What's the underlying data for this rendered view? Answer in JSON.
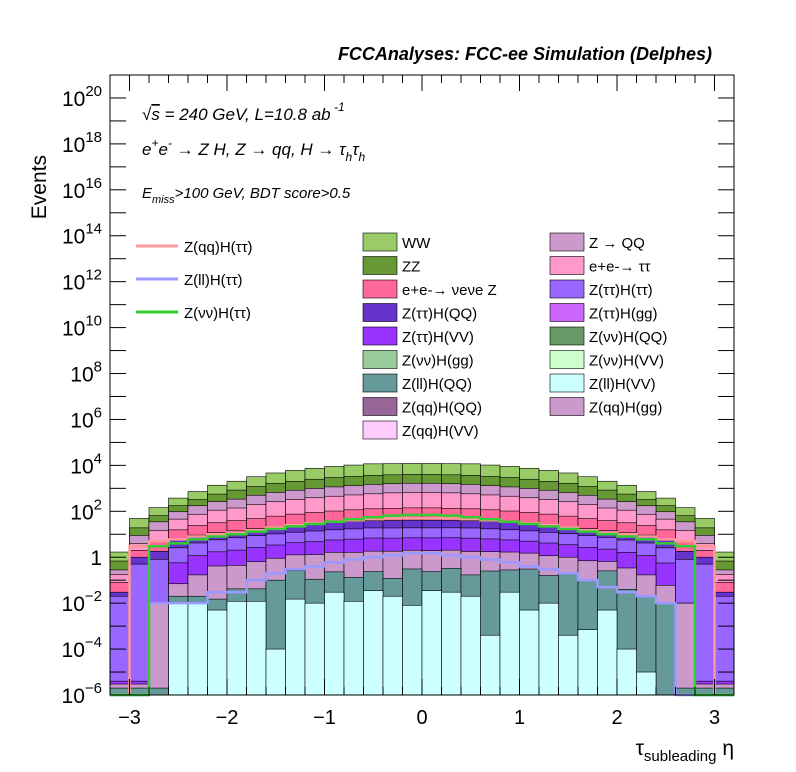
{
  "chart_data": {
    "type": "bar",
    "title": "FCCAnalyses: FCC-ee Simulation (Delphes)",
    "ylabel": "Events",
    "xlabel": "τsubleading η",
    "xlim": [
      -3.2,
      3.2
    ],
    "ylim": [
      1e-06,
      1e+21
    ],
    "yscale": "log",
    "x_ticks": [
      "−3",
      "−2",
      "−1",
      "0",
      "1",
      "2",
      "3"
    ],
    "y_ticks": [
      "10−6",
      "10−4",
      "10−2",
      "1",
      "102",
      "104",
      "106",
      "108",
      "1010",
      "1012",
      "1014",
      "1016",
      "1018",
      "1020"
    ],
    "annotations": {
      "sqrt_s": "√s = 240 GeV, L=10.8 ab−1",
      "process": "e+e- → Z H, Z → qq, H → τh τh",
      "selection": "Emiss>100 GeV, BDT score>0.5"
    },
    "bin_edges": [
      -3.2,
      -3.0,
      -2.8,
      -2.6,
      -2.4,
      -2.2,
      -2.0,
      -1.8,
      -1.6,
      -1.4,
      -1.2,
      -1.0,
      -0.8,
      -0.6,
      -0.4,
      -0.2,
      0.0,
      0.2,
      0.4,
      0.6,
      0.8,
      1.0,
      1.2,
      1.4,
      1.6,
      1.8,
      2.0,
      2.2,
      2.4,
      2.6,
      2.8,
      3.0,
      3.2
    ],
    "stack_legend": [
      {
        "label": "WW",
        "color": "#99cc66"
      },
      {
        "label": "Z → QQ",
        "color": "#cc99cc"
      },
      {
        "label": "ZZ",
        "color": "#669933"
      },
      {
        "label": "e+e-→ ττ",
        "color": "#ff99cc"
      },
      {
        "label": "e+e-→ νeνe Z",
        "color": "#ff6699"
      },
      {
        "label": "Z(ττ)H(ττ)",
        "color": "#9966ff"
      },
      {
        "label": "Z(ττ)H(QQ)",
        "color": "#6633cc"
      },
      {
        "label": "Z(ττ)H(gg)",
        "color": "#cc66ff"
      },
      {
        "label": "Z(ττ)H(VV)",
        "color": "#9933ff"
      },
      {
        "label": "Z(νν)H(QQ)",
        "color": "#669966"
      },
      {
        "label": "Z(νν)H(gg)",
        "color": "#99cc99"
      },
      {
        "label": "Z(νν)H(VV)",
        "color": "#ccffcc"
      },
      {
        "label": "Z(ll)H(QQ)",
        "color": "#669999"
      },
      {
        "label": "Z(ll)H(VV)",
        "color": "#ccffff"
      },
      {
        "label": "Z(qq)H(QQ)",
        "color": "#996699"
      },
      {
        "label": "Z(qq)H(gg)",
        "color": "#cc99cc"
      },
      {
        "label": "Z(qq)H(VV)",
        "color": "#ffccff"
      }
    ],
    "line_legend": [
      {
        "label": "Z(qq)H(ττ)",
        "color": "#ff9999"
      },
      {
        "label": "Z(ll)H(ττ)",
        "color": "#9999ff"
      },
      {
        "label": "Z(νν)H(ττ)",
        "color": "#33cc33"
      }
    ],
    "stack_layers": [
      {
        "name": "Z(ll)H(VV)",
        "color": "#ccffff",
        "values": [
          1e-06,
          1e-06,
          1e-06,
          0.01,
          0.01,
          0.005,
          0.012,
          0.012,
          0.0001,
          0.015,
          0.01,
          0.03,
          0.012,
          0.035,
          0.02,
          0.008,
          0.035,
          0.03,
          0.02,
          0.0004,
          0.03,
          0.005,
          0.01,
          0.0004,
          0.0007,
          0.005,
          0.0001,
          1e-05,
          1e-06,
          1e-06,
          1e-06,
          1e-06
        ]
      },
      {
        "name": "Z(ll)H(QQ)",
        "color": "#669999",
        "values": [
          1e-06,
          1e-06,
          1e-06,
          0.01,
          0.01,
          0.01,
          0.03,
          0.03,
          0.1,
          0.25,
          0.1,
          0.2,
          0.12,
          0.2,
          0.1,
          0.3,
          0.2,
          0.3,
          0.15,
          0.25,
          0.25,
          0.3,
          0.15,
          0.2,
          0.1,
          0.25,
          0.04,
          0.02,
          0.01,
          1e-06,
          1e-06,
          1e-06
        ]
      },
      {
        "name": "Z(qq)H(gg)",
        "color": "#cc99cc",
        "values": [
          1e-06,
          1e-06,
          0.01,
          0.05,
          0.15,
          0.4,
          0.4,
          0.6,
          0.8,
          1.0,
          1.2,
          1.4,
          1.5,
          1.6,
          1.7,
          1.7,
          1.7,
          1.7,
          1.6,
          1.5,
          1.4,
          1.2,
          1.0,
          0.8,
          0.6,
          0.4,
          0.3,
          0.15,
          0.05,
          0.01,
          1e-06,
          1e-06
        ]
      },
      {
        "name": "Z(ττ)H(VV)",
        "color": "#9933ff",
        "values": [
          1e-06,
          1e-06,
          1e-06,
          0.5,
          1.0,
          1.3,
          1.6,
          2.0,
          2.5,
          3.0,
          3.5,
          4.0,
          4.5,
          5.0,
          5.0,
          5.0,
          5.0,
          5.0,
          5.0,
          4.5,
          4.0,
          3.5,
          3.0,
          2.5,
          2.0,
          1.6,
          1.3,
          1.0,
          0.5,
          1e-06,
          1e-06,
          1e-06
        ]
      },
      {
        "name": "Z(ττ)H(ττ)",
        "color": "#9966ff",
        "values": [
          0.02,
          0.5,
          0.8,
          2.0,
          3.0,
          4.0,
          5.0,
          6.0,
          7.0,
          8.0,
          9.0,
          10.0,
          11.0,
          12.0,
          12.0,
          12.0,
          12.0,
          12.0,
          12.0,
          11.0,
          10.0,
          9.0,
          8.0,
          7.0,
          6.0,
          5.0,
          4.0,
          3.0,
          2.0,
          0.8,
          0.5,
          0.02
        ]
      },
      {
        "name": "Z(ττ)H(QQ)",
        "color": "#6633cc",
        "values": [
          0.01,
          0.5,
          1.0,
          3.0,
          5.0,
          6.0,
          7.0,
          9.0,
          11.0,
          13.0,
          15.0,
          17.0,
          19.0,
          20.0,
          21.0,
          22.0,
          22.0,
          21.0,
          20.0,
          19.0,
          17.0,
          15.0,
          13.0,
          11.0,
          9.0,
          7.0,
          6.0,
          5.0,
          3.0,
          1.0,
          0.5,
          0.01
        ]
      },
      {
        "name": "e+e-→ νeνe Z",
        "color": "#ff6699",
        "values": [
          0.05,
          1.0,
          3.0,
          10.0,
          15.0,
          20.0,
          25.0,
          30.0,
          40.0,
          50.0,
          60.0,
          70.0,
          80.0,
          90.0,
          95.0,
          100.0,
          100.0,
          95.0,
          90.0,
          80.0,
          70.0,
          60.0,
          50.0,
          40.0,
          30.0,
          25.0,
          20.0,
          15.0,
          10.0,
          3.0,
          1.0,
          0.05
        ]
      },
      {
        "name": "e+e-→ ττ",
        "color": "#ff99cc",
        "values": [
          0.1,
          2.0,
          10.0,
          30.0,
          50.0,
          80.0,
          100.0,
          150.0,
          200.0,
          250.0,
          300.0,
          350.0,
          400.0,
          450.0,
          500.0,
          520.0,
          520.0,
          500.0,
          450.0,
          400.0,
          350.0,
          300.0,
          250.0,
          200.0,
          150.0,
          100.0,
          80.0,
          50.0,
          30.0,
          10.0,
          2.0,
          0.1
        ]
      },
      {
        "name": "Z → QQ",
        "color": "#cc99cc",
        "values": [
          0.1,
          5.0,
          20.0,
          50.0,
          100.0,
          150.0,
          200.0,
          300.0,
          400.0,
          500.0,
          600.0,
          700.0,
          800.0,
          900.0,
          950.0,
          1000.0,
          1000.0,
          950.0,
          900.0,
          800.0,
          700.0,
          600.0,
          500.0,
          400.0,
          300.0,
          200.0,
          150.0,
          100.0,
          50.0,
          20.0,
          5.0,
          0.1
        ]
      },
      {
        "name": "ZZ",
        "color": "#669933",
        "values": [
          0.4,
          10.0,
          30.0,
          80.0,
          150.0,
          300.0,
          500.0,
          700.0,
          1000.0,
          1200.0,
          1500.0,
          1800.0,
          2000.0,
          2200.0,
          2300.0,
          2400.0,
          2400.0,
          2300.0,
          2200.0,
          2000.0,
          1800.0,
          1500.0,
          1200.0,
          1000.0,
          700.0,
          500.0,
          300.0,
          150.0,
          80.0,
          30.0,
          10.0,
          0.4
        ]
      },
      {
        "name": "WW",
        "color": "#99cc66",
        "values": [
          1.0,
          30.0,
          80.0,
          200.0,
          400.0,
          800.0,
          1200.0,
          2000.0,
          3000.0,
          4000.0,
          5000.0,
          6000.0,
          7000.0,
          8000.0,
          8000.0,
          8000.0,
          8000.0,
          8000.0,
          8000.0,
          7000.0,
          6000.0,
          5000.0,
          4000.0,
          3000.0,
          2000.0,
          1200.0,
          800.0,
          400.0,
          200.0,
          80.0,
          30.0,
          1.0
        ]
      }
    ],
    "lines": [
      {
        "name": "Z(qq)H(ττ)",
        "color": "#ff9999",
        "values": [
          1e-07,
          3.0,
          5.0,
          6.0,
          8.0,
          10.0,
          12.0,
          15.0,
          20.0,
          25.0,
          30.0,
          35.0,
          40.0,
          45.0,
          50.0,
          50.0,
          50.0,
          50.0,
          45.0,
          40.0,
          35.0,
          30.0,
          25.0,
          20.0,
          15.0,
          12.0,
          10.0,
          8.0,
          6.0,
          5.0,
          3.0,
          1e-07
        ]
      },
      {
        "name": "Z(ll)H(ττ)",
        "color": "#9999ff",
        "values": [
          1e-07,
          1e-07,
          0.01,
          0.01,
          0.01,
          0.03,
          0.03,
          0.1,
          0.2,
          0.3,
          0.4,
          0.6,
          0.8,
          1.0,
          1.2,
          1.5,
          1.5,
          1.2,
          1.0,
          0.8,
          0.6,
          0.4,
          0.3,
          0.2,
          0.1,
          0.05,
          0.03,
          0.02,
          0.01,
          1e-07,
          1e-07,
          1e-07
        ]
      },
      {
        "name": "Z(νν)H(ττ)",
        "color": "#33cc33",
        "values": [
          1e-07,
          1e-07,
          3.0,
          4.0,
          6.0,
          8.0,
          10.0,
          13.0,
          17.0,
          22.0,
          28.0,
          35.0,
          45.0,
          55.0,
          65.0,
          70.0,
          70.0,
          65.0,
          55.0,
          45.0,
          35.0,
          28.0,
          22.0,
          17.0,
          13.0,
          10.0,
          8.0,
          6.0,
          4.0,
          3.0,
          1e-07,
          1e-07
        ]
      }
    ]
  }
}
